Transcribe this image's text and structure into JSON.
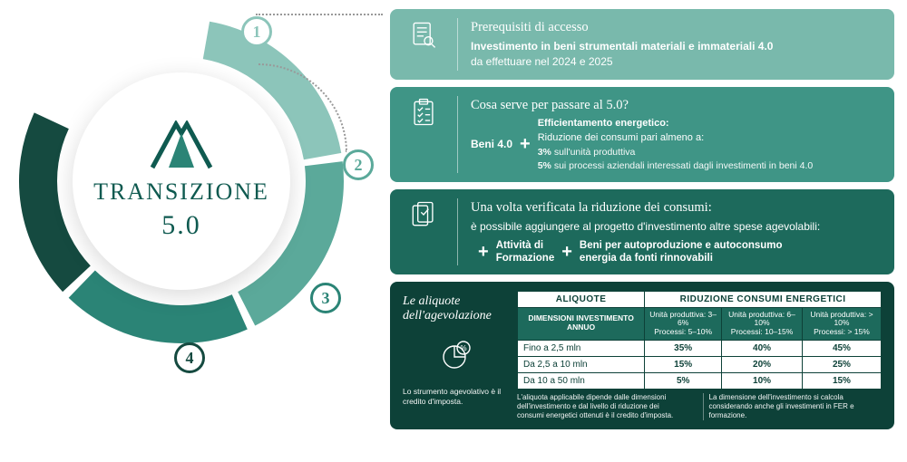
{
  "colors": {
    "seg1": "#8cc5ba",
    "seg2": "#5ba99a",
    "seg3": "#2b8476",
    "seg4": "#154a40",
    "card1": "#79b9ac",
    "card2": "#3f9586",
    "card3": "#1d6a5c",
    "card4": "#0d4138",
    "white": "#ffffff"
  },
  "ring": {
    "segments": 4,
    "start_angle_deg": -80,
    "seg_span_deg": [
      70,
      70,
      68,
      68
    ],
    "stroke_width": 42,
    "radius": 158
  },
  "brand": {
    "line1": "TRANSIZIONE",
    "version": "5.0",
    "logo_icon": "tent-logo"
  },
  "numbers": [
    "1",
    "2",
    "3",
    "4"
  ],
  "card1": {
    "title": "Prerequisiti di accesso",
    "bold": "Investimento in beni strumentali materiali e immateriali 4.0",
    "sub": "da effettuare nel 2024 e 2025",
    "icon": "document-search-icon"
  },
  "card2": {
    "title": "Cosa serve per passare al 5.0?",
    "left": "Beni 4.0",
    "right_title": "Efficientamento energetico:",
    "right_sub": "Riduzione dei consumi pari almeno a:",
    "line_a": "3% sull'unità produttiva",
    "line_b": "5% sui processi aziendali interessati dagli investimenti in beni 4.0",
    "icon": "checklist-icon"
  },
  "card3": {
    "title": "Una volta verificata la riduzione dei consumi:",
    "sub": "è possibile aggiungere al progetto d'investimento altre spese agevolabili:",
    "item_a": "Attività di\nFormazione",
    "item_b": "Beni per autoproduzione e autoconsumo\nenergia da fonti rinnovabili",
    "icon": "docs-check-icon"
  },
  "card4": {
    "side_title": "Le aliquote dell'agevolazione",
    "side_note": "Lo strumento agevolativo è il credito d'imposta.",
    "icon": "pie-percent-icon",
    "table": {
      "top_left": "ALIQUOTE",
      "top_right": "RIDUZIONE CONSUMI ENERGETICI",
      "dim_header": "DIMENSIONI INVESTIMENTO ANNUO",
      "ranges": [
        "Unità produttiva: 3–6%\nProcessi: 5–10%",
        "Unità produttiva: 6–10%\nProcessi: 10–15%",
        "Unità produttiva: > 10%\nProcessi: > 15%"
      ],
      "rows": [
        {
          "dim": "Fino a 2,5 mln",
          "v": [
            "35%",
            "40%",
            "45%"
          ]
        },
        {
          "dim": "Da 2,5 a 10 mln",
          "v": [
            "15%",
            "20%",
            "25%"
          ]
        },
        {
          "dim": "Da 10 a 50 mln",
          "v": [
            "5%",
            "10%",
            "15%"
          ]
        }
      ]
    },
    "foot_a": "L'aliquota applicabile dipende dalle dimensioni dell'investimento e dal livello di riduzione dei consumi energetici ottenuti è il credito d'imposta.",
    "foot_b": "La dimensione dell'investimento si calcola considerando anche gli investimenti in FER e formazione."
  }
}
